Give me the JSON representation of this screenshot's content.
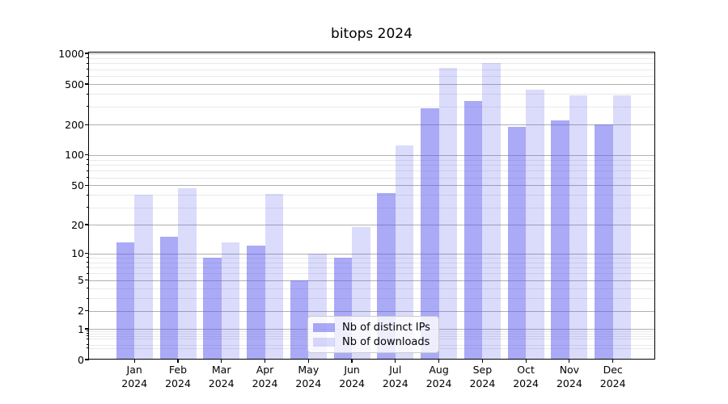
{
  "chart_data": {
    "type": "bar",
    "title": "bitops 2024",
    "categories": [
      {
        "month": "Jan",
        "year": "2024"
      },
      {
        "month": "Feb",
        "year": "2024"
      },
      {
        "month": "Mar",
        "year": "2024"
      },
      {
        "month": "Apr",
        "year": "2024"
      },
      {
        "month": "May",
        "year": "2024"
      },
      {
        "month": "Jun",
        "year": "2024"
      },
      {
        "month": "Jul",
        "year": "2024"
      },
      {
        "month": "Aug",
        "year": "2024"
      },
      {
        "month": "Sep",
        "year": "2024"
      },
      {
        "month": "Oct",
        "year": "2024"
      },
      {
        "month": "Nov",
        "year": "2024"
      },
      {
        "month": "Dec",
        "year": "2024"
      }
    ],
    "series": [
      {
        "name": "Nb of distinct IPs",
        "color": "rgba(85,85,238,0.50)",
        "values": [
          13,
          15,
          9,
          12,
          5,
          9,
          42,
          290,
          340,
          190,
          218,
          200
        ]
      },
      {
        "name": "Nb of downloads",
        "color": "rgba(85,85,238,0.21)",
        "values": [
          40,
          47,
          13,
          41,
          10,
          19,
          125,
          720,
          800,
          440,
          385,
          390
        ]
      }
    ],
    "ylabel": "",
    "xlabel": "",
    "yscale": "log10(1+x)",
    "ylim": [
      0,
      1000
    ],
    "yticks_major": [
      0,
      1,
      2,
      5,
      10,
      20,
      50,
      100,
      200,
      500,
      1000
    ],
    "yticks_minor": [
      0.3,
      0.4,
      0.6,
      0.7,
      0.8,
      0.9,
      3,
      4,
      6,
      7,
      8,
      9,
      30,
      40,
      60,
      70,
      80,
      90,
      300,
      400,
      600,
      700,
      800,
      900
    ],
    "grid": "horizontal major and minor gridlines",
    "legend_position": "lower center"
  },
  "colors": {
    "bar_distinct_ips": "rgba(85,85,238,0.50)",
    "bar_downloads": "rgba(85,85,238,0.21)",
    "grid_major": "#b0b0b0",
    "grid_minor": "#e9e9e9",
    "spine": "#000000",
    "background": "#ffffff",
    "legend_border": "#cccccc"
  }
}
